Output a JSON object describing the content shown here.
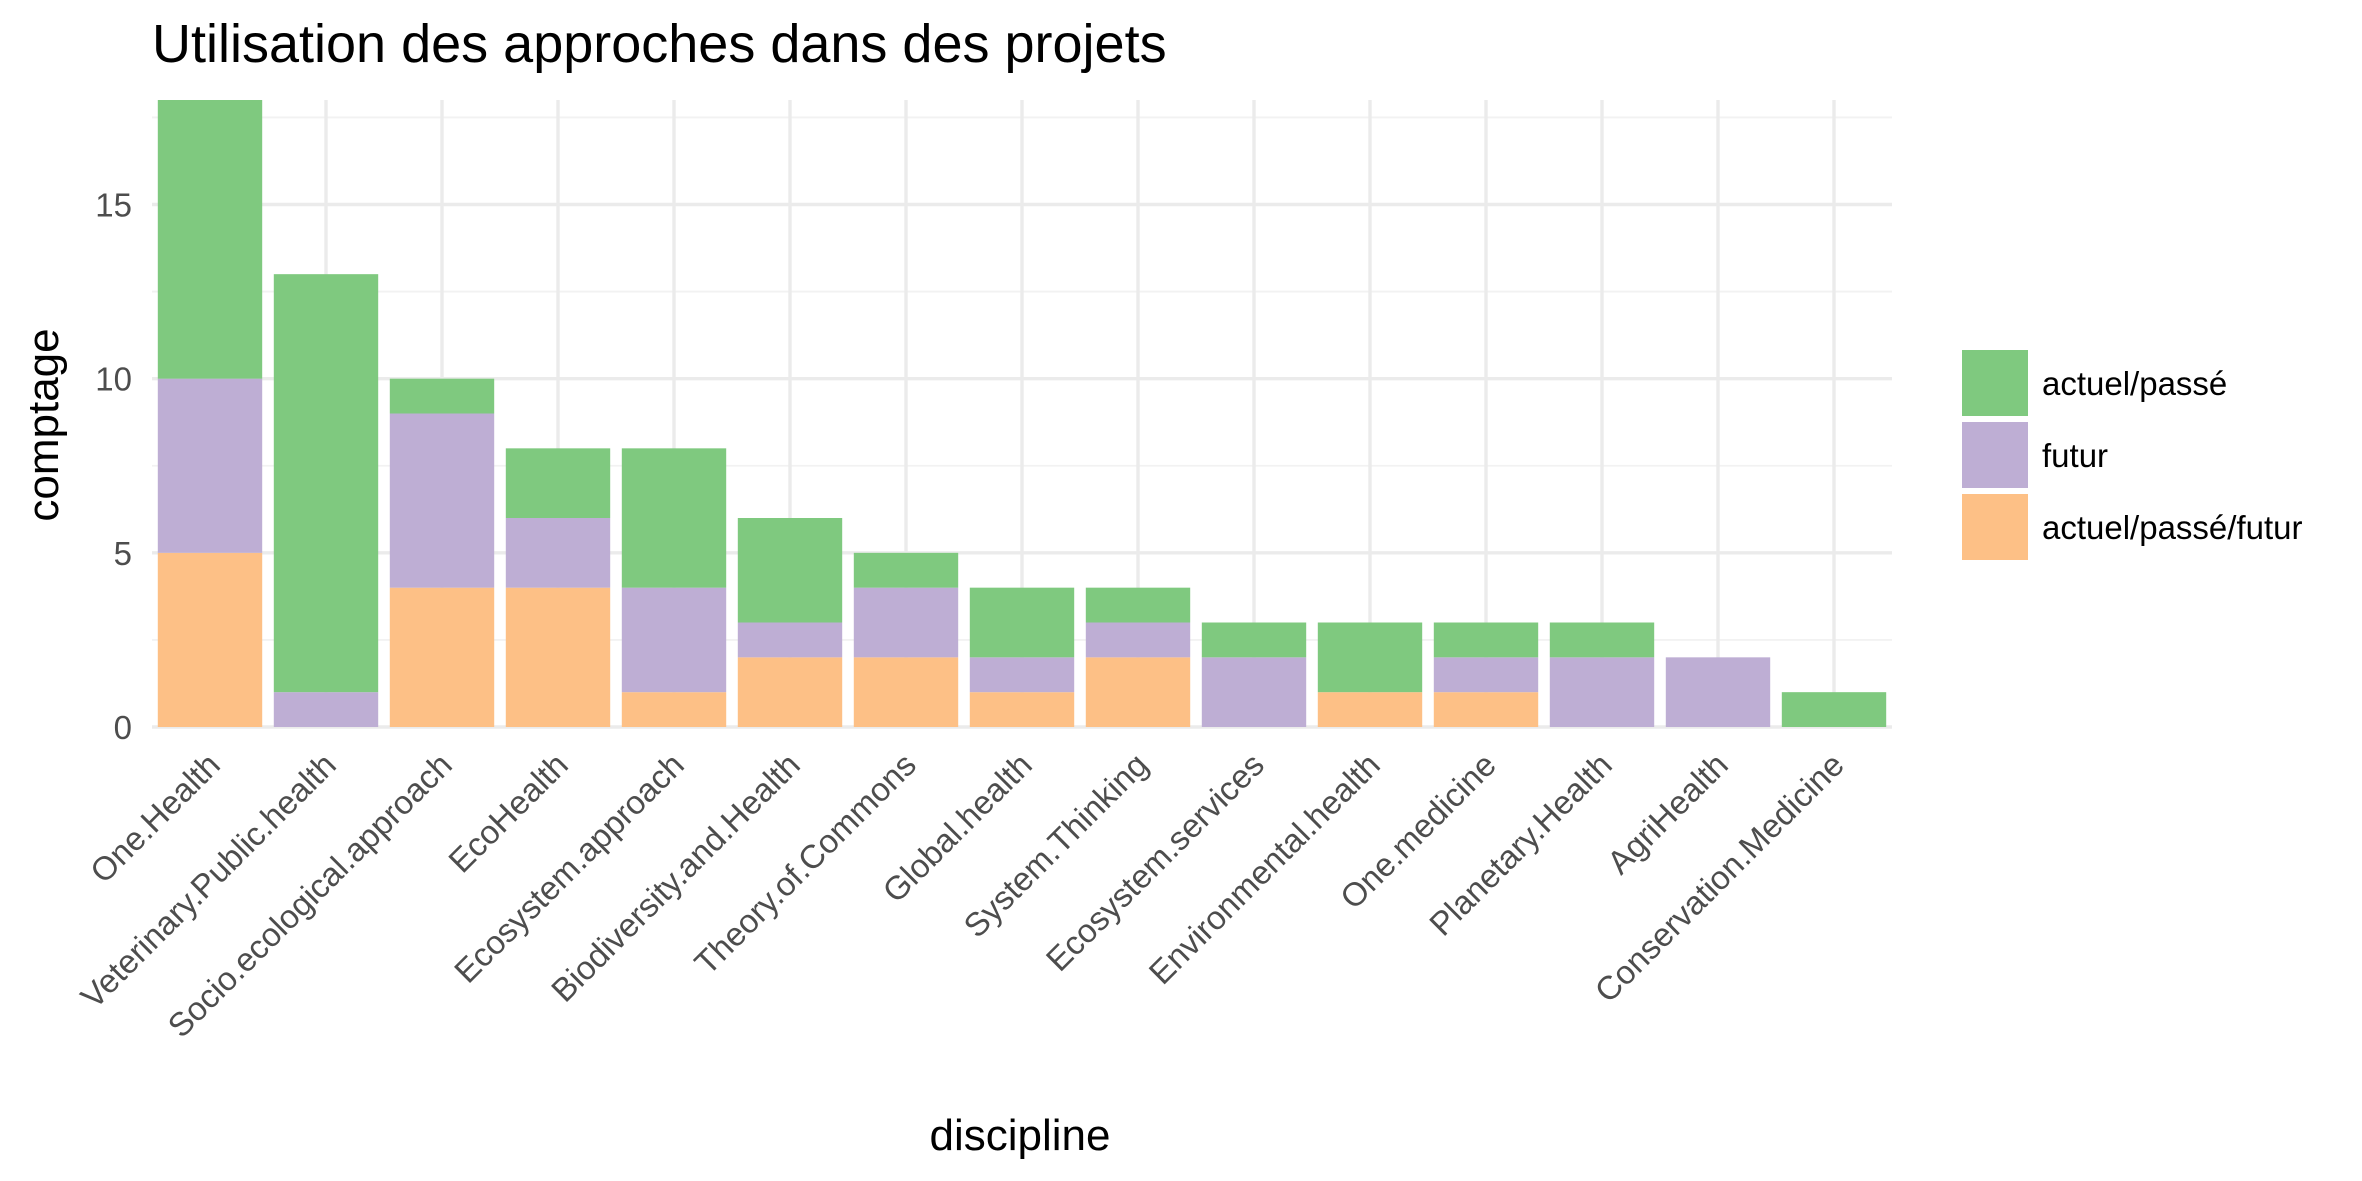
{
  "chart_data": {
    "type": "bar",
    "stacked": true,
    "title": "Utilisation des approches dans des projets",
    "xlabel": "discipline",
    "ylabel": "comptage",
    "ylim": [
      0,
      18
    ],
    "yticks": [
      0,
      5,
      10,
      15
    ],
    "grid": true,
    "legend_position": "right",
    "categories": [
      "One.Health",
      "Veterinary.Public.health",
      "Socio.ecological.approach",
      "EcoHealth",
      "Ecosystem.approach",
      "Biodiversity.and.Health",
      "Theory.of.Commons",
      "Global.health",
      "System.Thinking",
      "Ecosystem.services",
      "Environmental.health",
      "One.medicine",
      "Planetary.Health",
      "AgriHealth",
      "Conservation.Medicine"
    ],
    "series": [
      {
        "name": "actuel/passé/futur",
        "color": "#fdc086",
        "values": [
          5,
          0,
          4,
          4,
          1,
          2,
          2,
          1,
          2,
          0,
          1,
          1,
          0,
          0,
          0
        ]
      },
      {
        "name": "futur",
        "color": "#beaed4",
        "values": [
          5,
          1,
          5,
          2,
          3,
          1,
          2,
          1,
          1,
          2,
          0,
          1,
          2,
          2,
          0
        ]
      },
      {
        "name": "actuel/passé",
        "color": "#7fc97f",
        "values": [
          8,
          12,
          1,
          2,
          4,
          3,
          1,
          2,
          1,
          1,
          2,
          1,
          1,
          0,
          1
        ]
      }
    ],
    "legend_order": [
      "actuel/passé",
      "futur",
      "actuel/passé/futur"
    ]
  }
}
